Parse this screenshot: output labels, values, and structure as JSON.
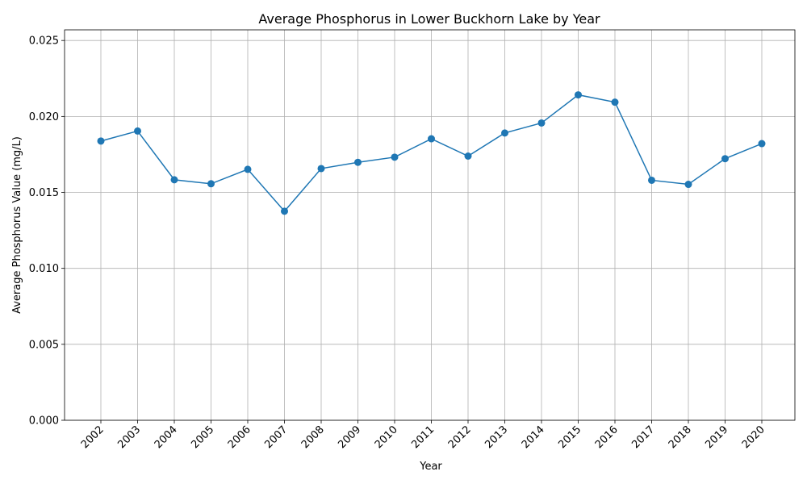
{
  "chart_data": {
    "type": "line",
    "title": "Average Phosphorus in Lower Buckhorn Lake by Year",
    "xlabel": "Year",
    "ylabel": "Average Phosphorus Value (mg/L)",
    "categories": [
      "2002",
      "2003",
      "2004",
      "2005",
      "2006",
      "2007",
      "2008",
      "2009",
      "2010",
      "2011",
      "2012",
      "2013",
      "2014",
      "2015",
      "2016",
      "2017",
      "2018",
      "2019",
      "2020"
    ],
    "values": [
      0.01838,
      0.01904,
      0.01583,
      0.01557,
      0.01652,
      0.01376,
      0.01657,
      0.01698,
      0.01732,
      0.01853,
      0.01739,
      0.01891,
      0.01957,
      0.02142,
      0.02094,
      0.0158,
      0.01553,
      0.01722,
      0.01821
    ],
    "ylim": [
      0,
      0.0257
    ],
    "yticks": [
      "0.000",
      "0.005",
      "0.010",
      "0.015",
      "0.020",
      "0.025"
    ],
    "ytick_values": [
      0,
      0.005,
      0.01,
      0.015,
      0.02,
      0.025
    ],
    "grid": true,
    "marker": "circle",
    "color": "#1f77b4"
  }
}
